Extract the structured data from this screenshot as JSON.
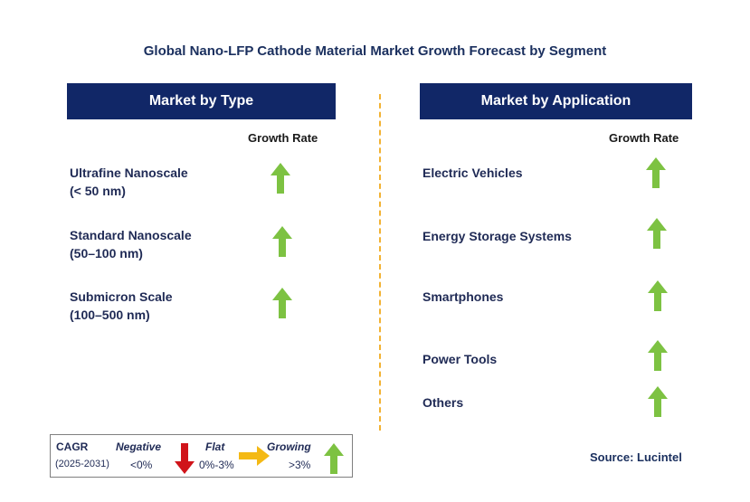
{
  "title": "Global Nano-LFP Cathode Material Market Growth Forecast by Segment",
  "left_panel": {
    "header": "Market by Type",
    "growth_label": "Growth Rate",
    "items": [
      {
        "line1": "Ultrafine Nanoscale",
        "line2": "(< 50 nm)",
        "trend": "growing"
      },
      {
        "line1": "Standard Nanoscale",
        "line2": "(50–100 nm)",
        "trend": "growing"
      },
      {
        "line1": "Submicron Scale",
        "line2": "(100–500 nm)",
        "trend": "growing"
      }
    ]
  },
  "right_panel": {
    "header": "Market by Application",
    "growth_label": "Growth Rate",
    "items": [
      {
        "label": "Electric Vehicles",
        "trend": "growing"
      },
      {
        "label": "Energy Storage Systems",
        "trend": "growing"
      },
      {
        "label": "Smartphones",
        "trend": "growing"
      },
      {
        "label": "Power Tools",
        "trend": "growing"
      },
      {
        "label": "Others",
        "trend": "growing"
      }
    ]
  },
  "legend": {
    "cagr": "CAGR",
    "period": "(2025-2031)",
    "negative": {
      "label": "Negative",
      "range": "<0%"
    },
    "flat": {
      "label": "Flat",
      "range": "0%-3%"
    },
    "growing": {
      "label": "Growing",
      "range": ">3%"
    }
  },
  "source": "Source: Lucintel",
  "colors": {
    "header_bg": "#112767",
    "growing_arrow": "#7dc242",
    "negative_arrow": "#d0141a",
    "flat_arrow": "#f4b914",
    "divider": "#f2b233"
  },
  "icons": {
    "growing": "up-arrow-icon",
    "negative": "down-arrow-icon",
    "flat": "right-arrow-icon"
  }
}
